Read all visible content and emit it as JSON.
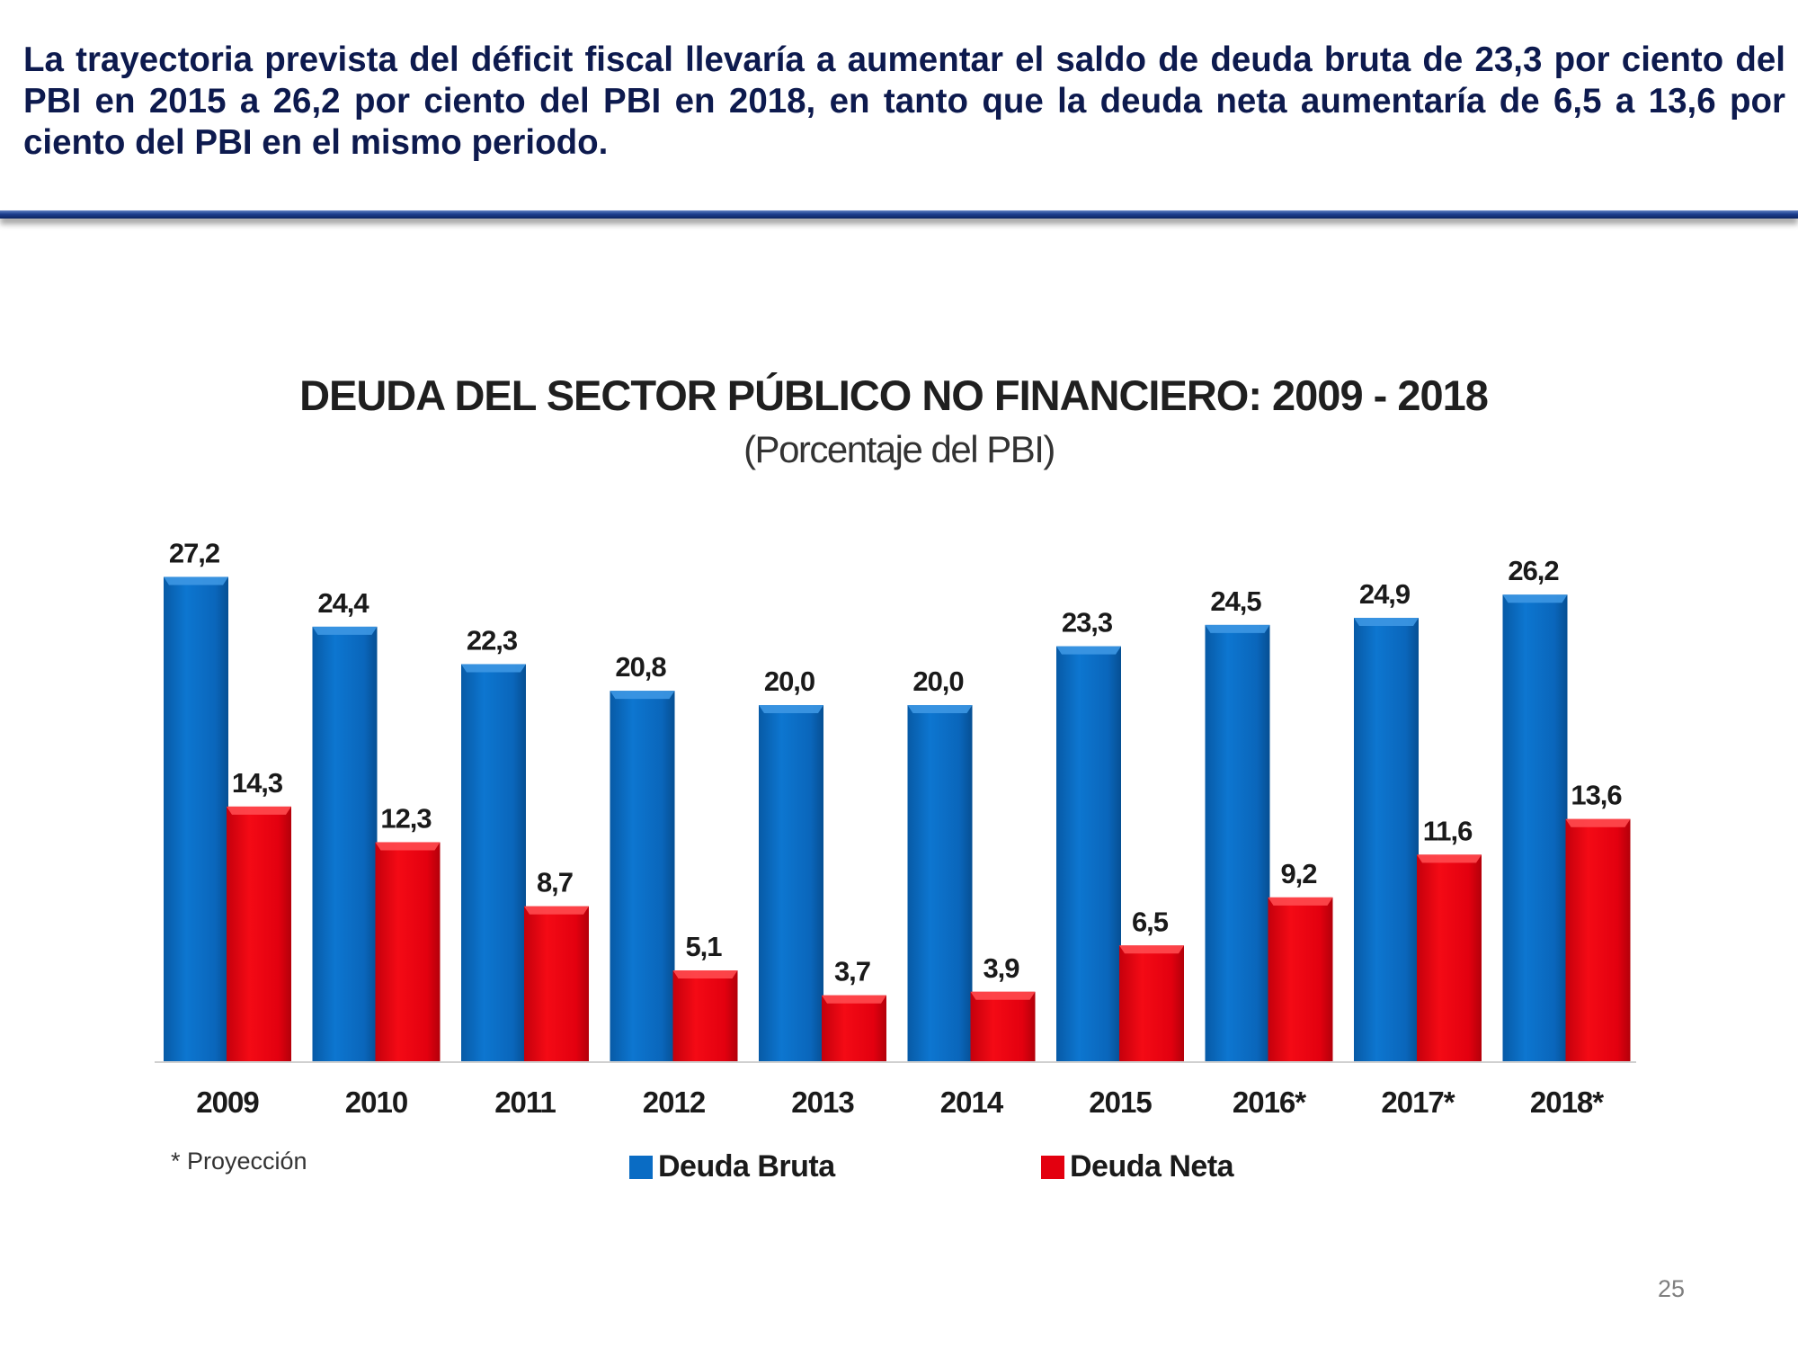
{
  "slide": {
    "headline": "La trayectoria prevista del déficit fiscal llevaría a aumentar el saldo de deuda bruta de 23,3 por ciento del PBI en 2015 a 26,2 por ciento del PBI en 2018, en tanto que la deuda neta aumentaría de 6,5 a 13,6 por ciento del PBI en el mismo periodo.",
    "footnote": "* Proyección",
    "page_number": "25"
  },
  "colors": {
    "gross_debt": "#0a6cc4",
    "net_debt": "#e3000f"
  },
  "chart_data": {
    "type": "bar",
    "title": "DEUDA DEL SECTOR PÚBLICO NO FINANCIERO:  2009 - 2018",
    "subtitle": "(Porcentaje del PBI)",
    "xlabel": "",
    "ylabel": "",
    "ylim": [
      0,
      30
    ],
    "grid": false,
    "legend_position": "bottom",
    "categories": [
      "2009",
      "2010",
      "2011",
      "2012",
      "2013",
      "2014",
      "2015",
      "2016*",
      "2017*",
      "2018*"
    ],
    "series": [
      {
        "name": "Deuda Bruta",
        "values": [
          27.2,
          24.4,
          22.3,
          20.8,
          20.0,
          20.0,
          23.3,
          24.5,
          24.9,
          26.2
        ],
        "labels": [
          "27,2",
          "24,4",
          "22,3",
          "20,8",
          "20,0",
          "20,0",
          "23,3",
          "24,5",
          "24,9",
          "26,2"
        ]
      },
      {
        "name": "Deuda Neta",
        "values": [
          14.3,
          12.3,
          8.7,
          5.1,
          3.7,
          3.9,
          6.5,
          9.2,
          11.6,
          13.6
        ],
        "labels": [
          "14,3",
          "12,3",
          "8,7",
          "5,1",
          "3,7",
          "3,9",
          "6,5",
          "9,2",
          "11,6",
          "13,6"
        ]
      }
    ]
  }
}
